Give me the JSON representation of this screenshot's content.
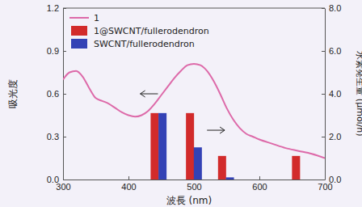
{
  "chart_data": {
    "type": "line",
    "xlabel": "波長 (nm)",
    "ylabel": "吸光度",
    "y2label": "水素発生量 (μmol/h)",
    "xlim": [
      300,
      700
    ],
    "xticks": [
      300,
      400,
      500,
      600,
      700
    ],
    "ylim": [
      0,
      1.2
    ],
    "yticks": [
      {
        "value": 0,
        "label": "0.0"
      },
      {
        "value": 0.3,
        "label": "0.3"
      },
      {
        "value": 0.6,
        "label": "0.6"
      },
      {
        "value": 0.9,
        "label": "0.9"
      },
      {
        "value": 1.2,
        "label": "1.2"
      }
    ],
    "y2lim": [
      0,
      8
    ],
    "y2ticks": [
      {
        "value": 0,
        "label": "0.0"
      },
      {
        "value": 2,
        "label": "2.0"
      },
      {
        "value": 4,
        "label": "4.0"
      },
      {
        "value": 6,
        "label": "6.0"
      },
      {
        "value": 8,
        "label": "8.0"
      }
    ],
    "legend": "upper left",
    "series": [
      {
        "name": "1",
        "type": "line",
        "color": "#dd6aa9",
        "axis": "y",
        "x": [
          300,
          310,
          320,
          330,
          340,
          350,
          360,
          370,
          380,
          390,
          400,
          410,
          420,
          430,
          440,
          450,
          460,
          470,
          480,
          490,
          500,
          510,
          520,
          530,
          540,
          550,
          560,
          570,
          580,
          590,
          600,
          620,
          640,
          660,
          680,
          700
        ],
        "values": [
          0.7,
          0.75,
          0.76,
          0.72,
          0.64,
          0.57,
          0.55,
          0.53,
          0.5,
          0.47,
          0.45,
          0.44,
          0.45,
          0.48,
          0.53,
          0.59,
          0.65,
          0.71,
          0.76,
          0.8,
          0.81,
          0.8,
          0.76,
          0.69,
          0.6,
          0.5,
          0.42,
          0.36,
          0.32,
          0.3,
          0.28,
          0.25,
          0.22,
          0.2,
          0.18,
          0.15
        ]
      },
      {
        "name": "1@SWCNT/fullerodendron",
        "type": "bar",
        "color": "#d22b2b",
        "axis": "y2",
        "x": [
          440,
          494,
          543,
          656
        ],
        "values": [
          3.1,
          3.1,
          1.1,
          1.1
        ]
      },
      {
        "name": "SWCNT/fullerodendron",
        "type": "bar",
        "color": "#3342b5",
        "axis": "y2",
        "x": [
          452,
          506,
          555,
          668
        ],
        "values": [
          3.1,
          1.5,
          0.1,
          0
        ]
      }
    ]
  }
}
